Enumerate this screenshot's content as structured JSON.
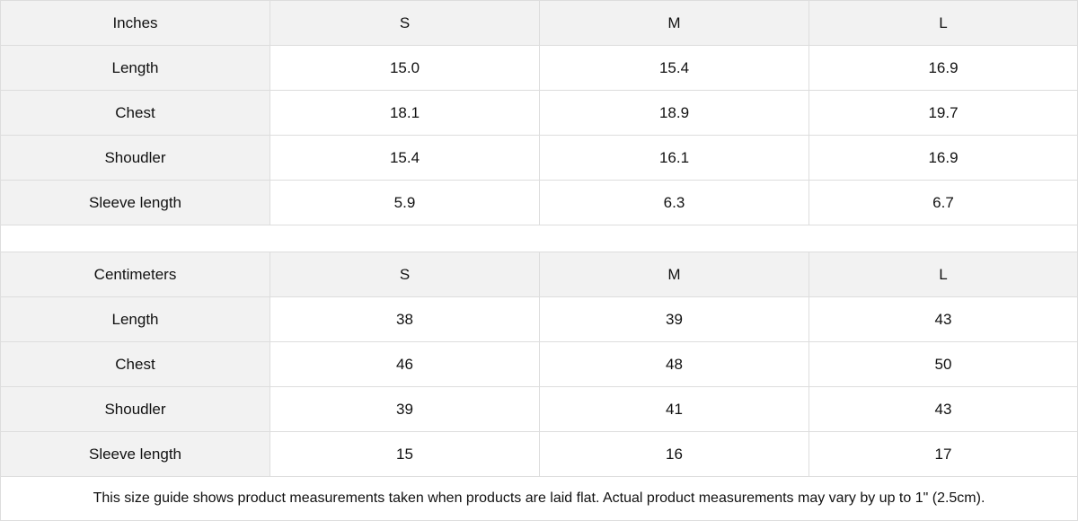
{
  "tables": [
    {
      "unit": "Inches",
      "sizes": [
        "S",
        "M",
        "L"
      ],
      "rows": [
        {
          "label": "Length",
          "values": [
            "15.0",
            "15.4",
            "16.9"
          ]
        },
        {
          "label": "Chest",
          "values": [
            "18.1",
            "18.9",
            "19.7"
          ]
        },
        {
          "label": "Shoudler",
          "values": [
            "15.4",
            "16.1",
            "16.9"
          ]
        },
        {
          "label": "Sleeve length",
          "values": [
            "5.9",
            "6.3",
            "6.7"
          ]
        }
      ]
    },
    {
      "unit": "Centimeters",
      "sizes": [
        "S",
        "M",
        "L"
      ],
      "rows": [
        {
          "label": "Length",
          "values": [
            "38",
            "39",
            "43"
          ]
        },
        {
          "label": "Chest",
          "values": [
            "46",
            "48",
            "50"
          ]
        },
        {
          "label": "Shoudler",
          "values": [
            "39",
            "41",
            "43"
          ]
        },
        {
          "label": "Sleeve length",
          "values": [
            "15",
            "16",
            "17"
          ]
        }
      ]
    }
  ],
  "note": "This size guide shows product measurements taken when products are laid flat.  Actual product measurements may vary by up to 1\" (2.5cm)."
}
